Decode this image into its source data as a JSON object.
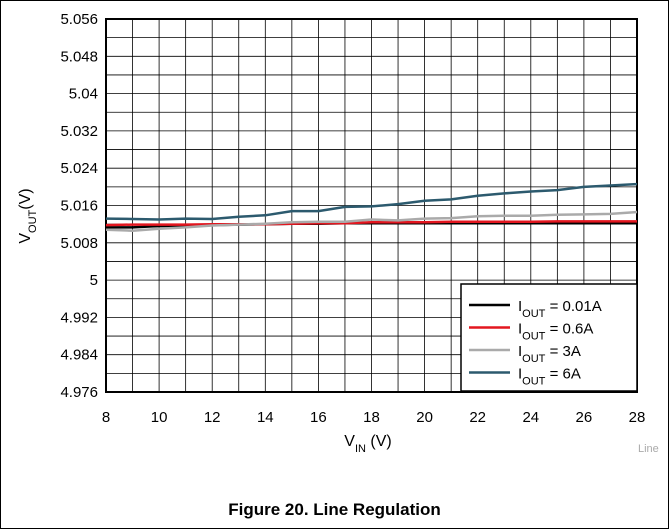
{
  "caption": "Figure 20. Line Regulation",
  "corner_label": "Line",
  "chart_data": {
    "type": "line",
    "xlabel": "V_IN (V)",
    "ylabel": "V_OUT(V)",
    "xlim": [
      8,
      28
    ],
    "ylim": [
      4.976,
      5.056
    ],
    "x_ticks": [
      8,
      10,
      12,
      14,
      16,
      18,
      20,
      22,
      24,
      26,
      28
    ],
    "x_tick_labels": [
      "8",
      "10",
      "12",
      "14",
      "16",
      "18",
      "20",
      "22",
      "24",
      "26",
      "28"
    ],
    "y_ticks": [
      4.976,
      4.984,
      4.992,
      5.0,
      5.008,
      5.016,
      5.024,
      5.032,
      5.04,
      5.048,
      5.056
    ],
    "y_tick_labels": [
      "4.976",
      "4.984",
      "4.992",
      "5",
      "5.008",
      "5.016",
      "5.024",
      "5.032",
      "5.04",
      "5.048",
      "5.056"
    ],
    "grid": true,
    "minor_grid_x_step": 1,
    "legend_position": "bottom-right",
    "x": [
      8,
      9,
      10,
      11,
      12,
      13,
      14,
      15,
      16,
      17,
      18,
      19,
      20,
      21,
      22,
      23,
      24,
      25,
      26,
      27,
      28
    ],
    "series": [
      {
        "name": "I_OUT = 0.01A",
        "color": "#000000",
        "values": [
          5.0113,
          5.0113,
          5.0116,
          5.0116,
          5.0118,
          5.0119,
          5.012,
          5.0121,
          5.0121,
          5.0122,
          5.0122,
          5.0122,
          5.0123,
          5.0123,
          5.0122,
          5.0123,
          5.0122,
          5.0123,
          5.0123,
          5.0123,
          5.0123
        ]
      },
      {
        "name": "I_OUT = 0.6A",
        "color": "#e3161f",
        "values": [
          5.0118,
          5.0119,
          5.0119,
          5.0119,
          5.012,
          5.012,
          5.012,
          5.0121,
          5.0122,
          5.0122,
          5.0124,
          5.0124,
          5.0124,
          5.0125,
          5.0125,
          5.0125,
          5.0125,
          5.0126,
          5.0126,
          5.0126,
          5.0126
        ]
      },
      {
        "name": "I_OUT = 3A",
        "color": "#aaaaaa",
        "values": [
          5.0108,
          5.0106,
          5.011,
          5.0113,
          5.0117,
          5.0119,
          5.0121,
          5.0124,
          5.0125,
          5.0125,
          5.013,
          5.0128,
          5.0132,
          5.0133,
          5.0137,
          5.0138,
          5.0138,
          5.014,
          5.0141,
          5.0142,
          5.0146
        ]
      },
      {
        "name": "I_OUT = 6A",
        "color": "#2c5a6e",
        "values": [
          5.0132,
          5.0131,
          5.013,
          5.0132,
          5.0131,
          5.0136,
          5.0139,
          5.0148,
          5.0148,
          5.0157,
          5.0158,
          5.0163,
          5.017,
          5.0173,
          5.0181,
          5.0186,
          5.019,
          5.0193,
          5.02,
          5.0203,
          5.0206
        ]
      }
    ]
  }
}
